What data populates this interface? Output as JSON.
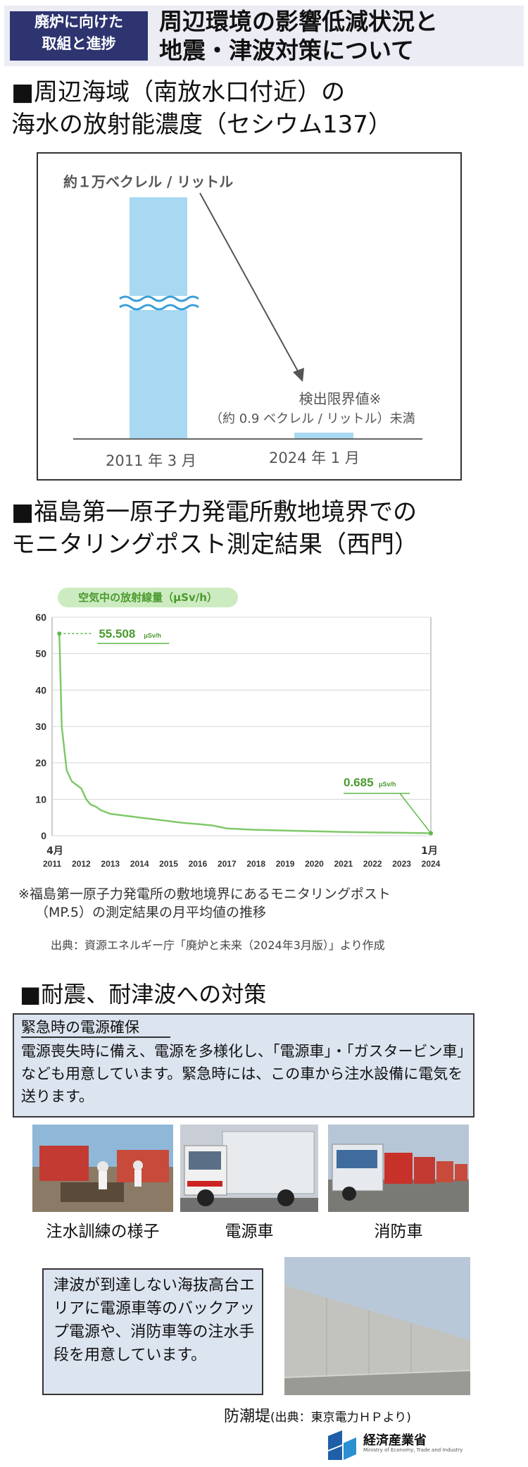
{
  "header": {
    "tag_line1": "廃炉に向けた",
    "tag_line2": "取組と進捗",
    "title_line1": "周辺環境の影響低減状況と",
    "title_line2": "地震・津波対策について"
  },
  "sea_section": {
    "heading_line1": "■周辺海域（南放水口付近）の",
    "heading_line2": "海水の放射能濃度（セシウム137）",
    "top_value_label": "約１万ベクレル / リットル",
    "detection_label_line1": "検出限界値※",
    "detection_label_line2": "（約 0.9 ベクレル / リットル）未満",
    "date_left": "2011 年 3 月",
    "date_right": "2024 年 1 月"
  },
  "monitor_section": {
    "heading_line1": "■福島第一原子力発電所敷地境界での",
    "heading_line2": "モニタリングポスト測定結果（西門）",
    "chart_label": "空気中の放射線量（μSv/h）",
    "note_line1": "※福島第一原子力発電所の敷地境界にあるモニタリングポスト",
    "note_line2": "（MP.5）の測定結果の月平均値の推移",
    "source": "出典：資源エネルギー庁「廃炉と未来（2024年3月版）」より作成"
  },
  "chart_data": {
    "type": "line",
    "ylabel": "空気中の放射線量（μSv/h）",
    "ylim": [
      0,
      60
    ],
    "yticks": [
      "0",
      "10",
      "20",
      "30",
      "40",
      "50",
      "60"
    ],
    "xticks": [
      "2011",
      "2012",
      "2013",
      "2014",
      "2015",
      "2016",
      "2017",
      "2018",
      "2019",
      "2020",
      "2021",
      "2022",
      "2023",
      "2024"
    ],
    "start_month_label": "4月",
    "end_month_label": "1月",
    "x": [
      2011.25,
      2011.33,
      2011.5,
      2011.67,
      2011.83,
      2012.0,
      2012.17,
      2012.33,
      2012.5,
      2012.67,
      2013.0,
      2013.5,
      2014.0,
      2014.5,
      2015.0,
      2015.5,
      2016.0,
      2016.5,
      2017.0,
      2018.0,
      2019.0,
      2020.0,
      2021.0,
      2022.0,
      2023.0,
      2024.0
    ],
    "y": [
      55.508,
      30,
      18,
      15,
      14,
      13,
      10,
      8.5,
      8,
      7,
      6,
      5.5,
      5,
      4.5,
      4,
      3.5,
      3.2,
      2.8,
      2,
      1.6,
      1.4,
      1.2,
      1.0,
      0.9,
      0.8,
      0.685
    ],
    "annotations": [
      {
        "value": "55.508",
        "unit": "μSv/h"
      },
      {
        "value": "0.685",
        "unit": "μSv/h"
      }
    ]
  },
  "quake_section": {
    "heading": "■耐震、耐津波への対策",
    "box_heading": "緊急時の電源確保",
    "box_text": "電源喪失時に備え、電源を多様化し、「電源車」・「ガスタービン車」なども用意しています。緊急時には、この車から注水設備に電気を送ります。",
    "captions": [
      "注水訓練の様子",
      "電源車",
      "消防車"
    ],
    "tsunami_text": "津波が到達しない海抜高台エリアに電源車等のバックアップ電源や、消防車等の注水手段を用意しています。",
    "seawall_caption": "防潮堤",
    "seawall_source": "(出典：東京電力ＨＰより)"
  },
  "footer": {
    "ministry": "経済産業省",
    "ministry_en": "Ministry of Economy, Trade and Industry"
  },
  "colors": {
    "header_tag_bg": "#2e3470",
    "bar_blue": "#a8d8f2",
    "chart_green": "#5fb84a",
    "box_bg": "#dce4f0"
  }
}
